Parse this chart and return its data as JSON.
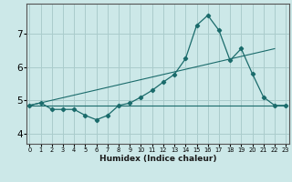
{
  "xlabel": "Humidex (Indice chaleur)",
  "bg_color": "#cce8e8",
  "grid_color": "#aacccc",
  "line_color": "#1a6b6b",
  "x_ticks": [
    0,
    1,
    2,
    3,
    4,
    5,
    6,
    7,
    8,
    9,
    10,
    11,
    12,
    13,
    14,
    15,
    16,
    17,
    18,
    19,
    20,
    21,
    22,
    23
  ],
  "y_ticks": [
    4,
    5,
    6,
    7
  ],
  "ylim": [
    3.7,
    7.9
  ],
  "xlim": [
    -0.3,
    23.3
  ],
  "flat_line_x": [
    0,
    23
  ],
  "flat_line_y": [
    4.85,
    4.85
  ],
  "diag_line_x": [
    0,
    22
  ],
  "diag_line_y": [
    4.85,
    6.55
  ],
  "main_curve_x": [
    0,
    1,
    2,
    3,
    4,
    5,
    6,
    7,
    8,
    9,
    10,
    11,
    12,
    13,
    14,
    15,
    16,
    17,
    18,
    19,
    20,
    21,
    22,
    23
  ],
  "main_curve_y": [
    4.85,
    4.93,
    4.73,
    4.73,
    4.73,
    4.55,
    4.42,
    4.55,
    4.85,
    4.92,
    5.1,
    5.3,
    5.55,
    5.78,
    6.25,
    7.25,
    7.55,
    7.1,
    6.2,
    6.55,
    5.8,
    5.1,
    4.85,
    4.85
  ]
}
